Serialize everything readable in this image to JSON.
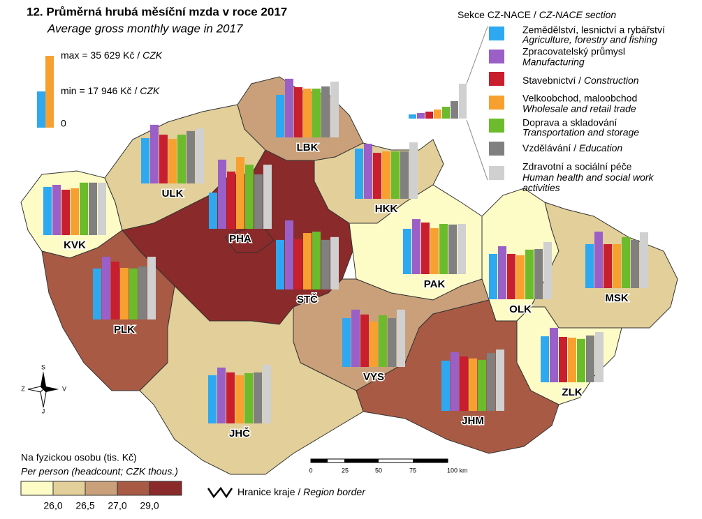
{
  "title": "12. Průměrná hrubá měsíční mzda v roce 2017",
  "subtitle": "Average gross monthly wage in 2017",
  "scale_legend": {
    "max": {
      "value": 35629,
      "label": "max = 35 629 Kč /",
      "unit": "CZK"
    },
    "min": {
      "value": 17946,
      "label": "min = 17 946 Kč /",
      "unit": "CZK"
    },
    "zero": {
      "value": 0,
      "label": "0"
    }
  },
  "sections": {
    "title": "Sekce CZ-NACE /",
    "title_en": "CZ-NACE section",
    "series": [
      {
        "name": "Zemědělství, lesnictví a rybářství",
        "name_en": "Agriculture, forestry and fishing",
        "color": "#2ea8f0"
      },
      {
        "name": "Zpracovatelský průmysl",
        "name_en": "Manufacturing",
        "color": "#9b5fc8"
      },
      {
        "name": "Stavebnictví /",
        "name_en": "Construction",
        "color": "#c81e2e"
      },
      {
        "name": "Velkoobchod, maloobchod",
        "name_en": "Wholesale and retail trade",
        "color": "#f7a030"
      },
      {
        "name": "Doprava a skladování",
        "name_en": "Transportation and storage",
        "color": "#6cbb2c"
      },
      {
        "name": "Vzdělávání /",
        "name_en": "Education",
        "color": "#808080"
      },
      {
        "name": "Zdravotní a sociální péče",
        "name_en": "Human health and social work activities",
        "color": "#d0d0d0"
      }
    ]
  },
  "regions": [
    {
      "code": "KVK",
      "fill": "#fdfbc6",
      "values": [
        23900,
        24900,
        22500,
        23200,
        26000,
        26000,
        26000
      ]
    },
    {
      "code": "ULK",
      "fill": "#e2cf99",
      "values": [
        22500,
        29100,
        24200,
        22100,
        24200,
        26000,
        27300
      ]
    },
    {
      "code": "LBK",
      "fill": "#c9a07a",
      "values": [
        21100,
        29100,
        24900,
        24200,
        24200,
        25300,
        27700
      ]
    },
    {
      "code": "HKK",
      "fill": "#e2cf99",
      "values": [
        24900,
        27300,
        22800,
        23500,
        23500,
        23500,
        28000
      ]
    },
    {
      "code": "STČ",
      "fill": "#8b2a2a",
      "values": [
        24600,
        34300,
        24900,
        28000,
        28700,
        24600,
        26000
      ]
    },
    {
      "code": "PHA",
      "fill": "#8b2a2a",
      "values": [
        17946,
        34300,
        28400,
        35629,
        31800,
        27000,
        31800
      ]
    },
    {
      "code": "PLK",
      "fill": "#a85a45",
      "values": [
        25300,
        31100,
        28700,
        25600,
        25300,
        26300,
        31100
      ]
    },
    {
      "code": "PAK",
      "fill": "#fdfbc6",
      "values": [
        22500,
        27300,
        25600,
        22800,
        24900,
        24600,
        24900
      ]
    },
    {
      "code": "OLK",
      "fill": "#fdfbc6",
      "values": [
        22500,
        26300,
        22500,
        21800,
        24600,
        24900,
        28400
      ]
    },
    {
      "code": "MSK",
      "fill": "#e2cf99",
      "values": [
        21800,
        28000,
        21800,
        21800,
        25300,
        23900,
        27700
      ]
    },
    {
      "code": "ZLK",
      "fill": "#fdfbc6",
      "values": [
        22800,
        27000,
        22500,
        22100,
        21500,
        23200,
        24900
      ]
    },
    {
      "code": "JHM",
      "fill": "#a85a45",
      "values": [
        24900,
        29100,
        27000,
        26000,
        25300,
        28700,
        30400
      ]
    },
    {
      "code": "VYS",
      "fill": "#c9a07a",
      "values": [
        24200,
        28400,
        26000,
        22500,
        25600,
        24200,
        28400
      ]
    },
    {
      "code": "JHČ",
      "fill": "#e2cf99",
      "values": [
        23900,
        27700,
        25300,
        23900,
        24900,
        25300,
        29100
      ]
    }
  ],
  "classes": {
    "title": "Na fyzickou osobu (tis. Kč)",
    "title_en": "Per person (headcount; CZK thous.)",
    "colors": [
      "#fdfbc6",
      "#e2cf99",
      "#c9a07a",
      "#a85a45",
      "#8b2a2a"
    ],
    "breaks": [
      {
        "value": 26,
        "label": "26,0"
      },
      {
        "value": 26.5,
        "label": "26,5"
      },
      {
        "value": 27,
        "label": "27,0"
      },
      {
        "value": 29,
        "label": "29,0"
      }
    ]
  },
  "scalebar": {
    "ticks": [
      "0",
      "25",
      "50",
      "75",
      "100 km"
    ]
  },
  "border_legend": {
    "label": "Hranice kraje /",
    "label_en": "Region border"
  },
  "compass": {
    "n": "S",
    "s": "J",
    "w": "Z",
    "e": "V"
  }
}
